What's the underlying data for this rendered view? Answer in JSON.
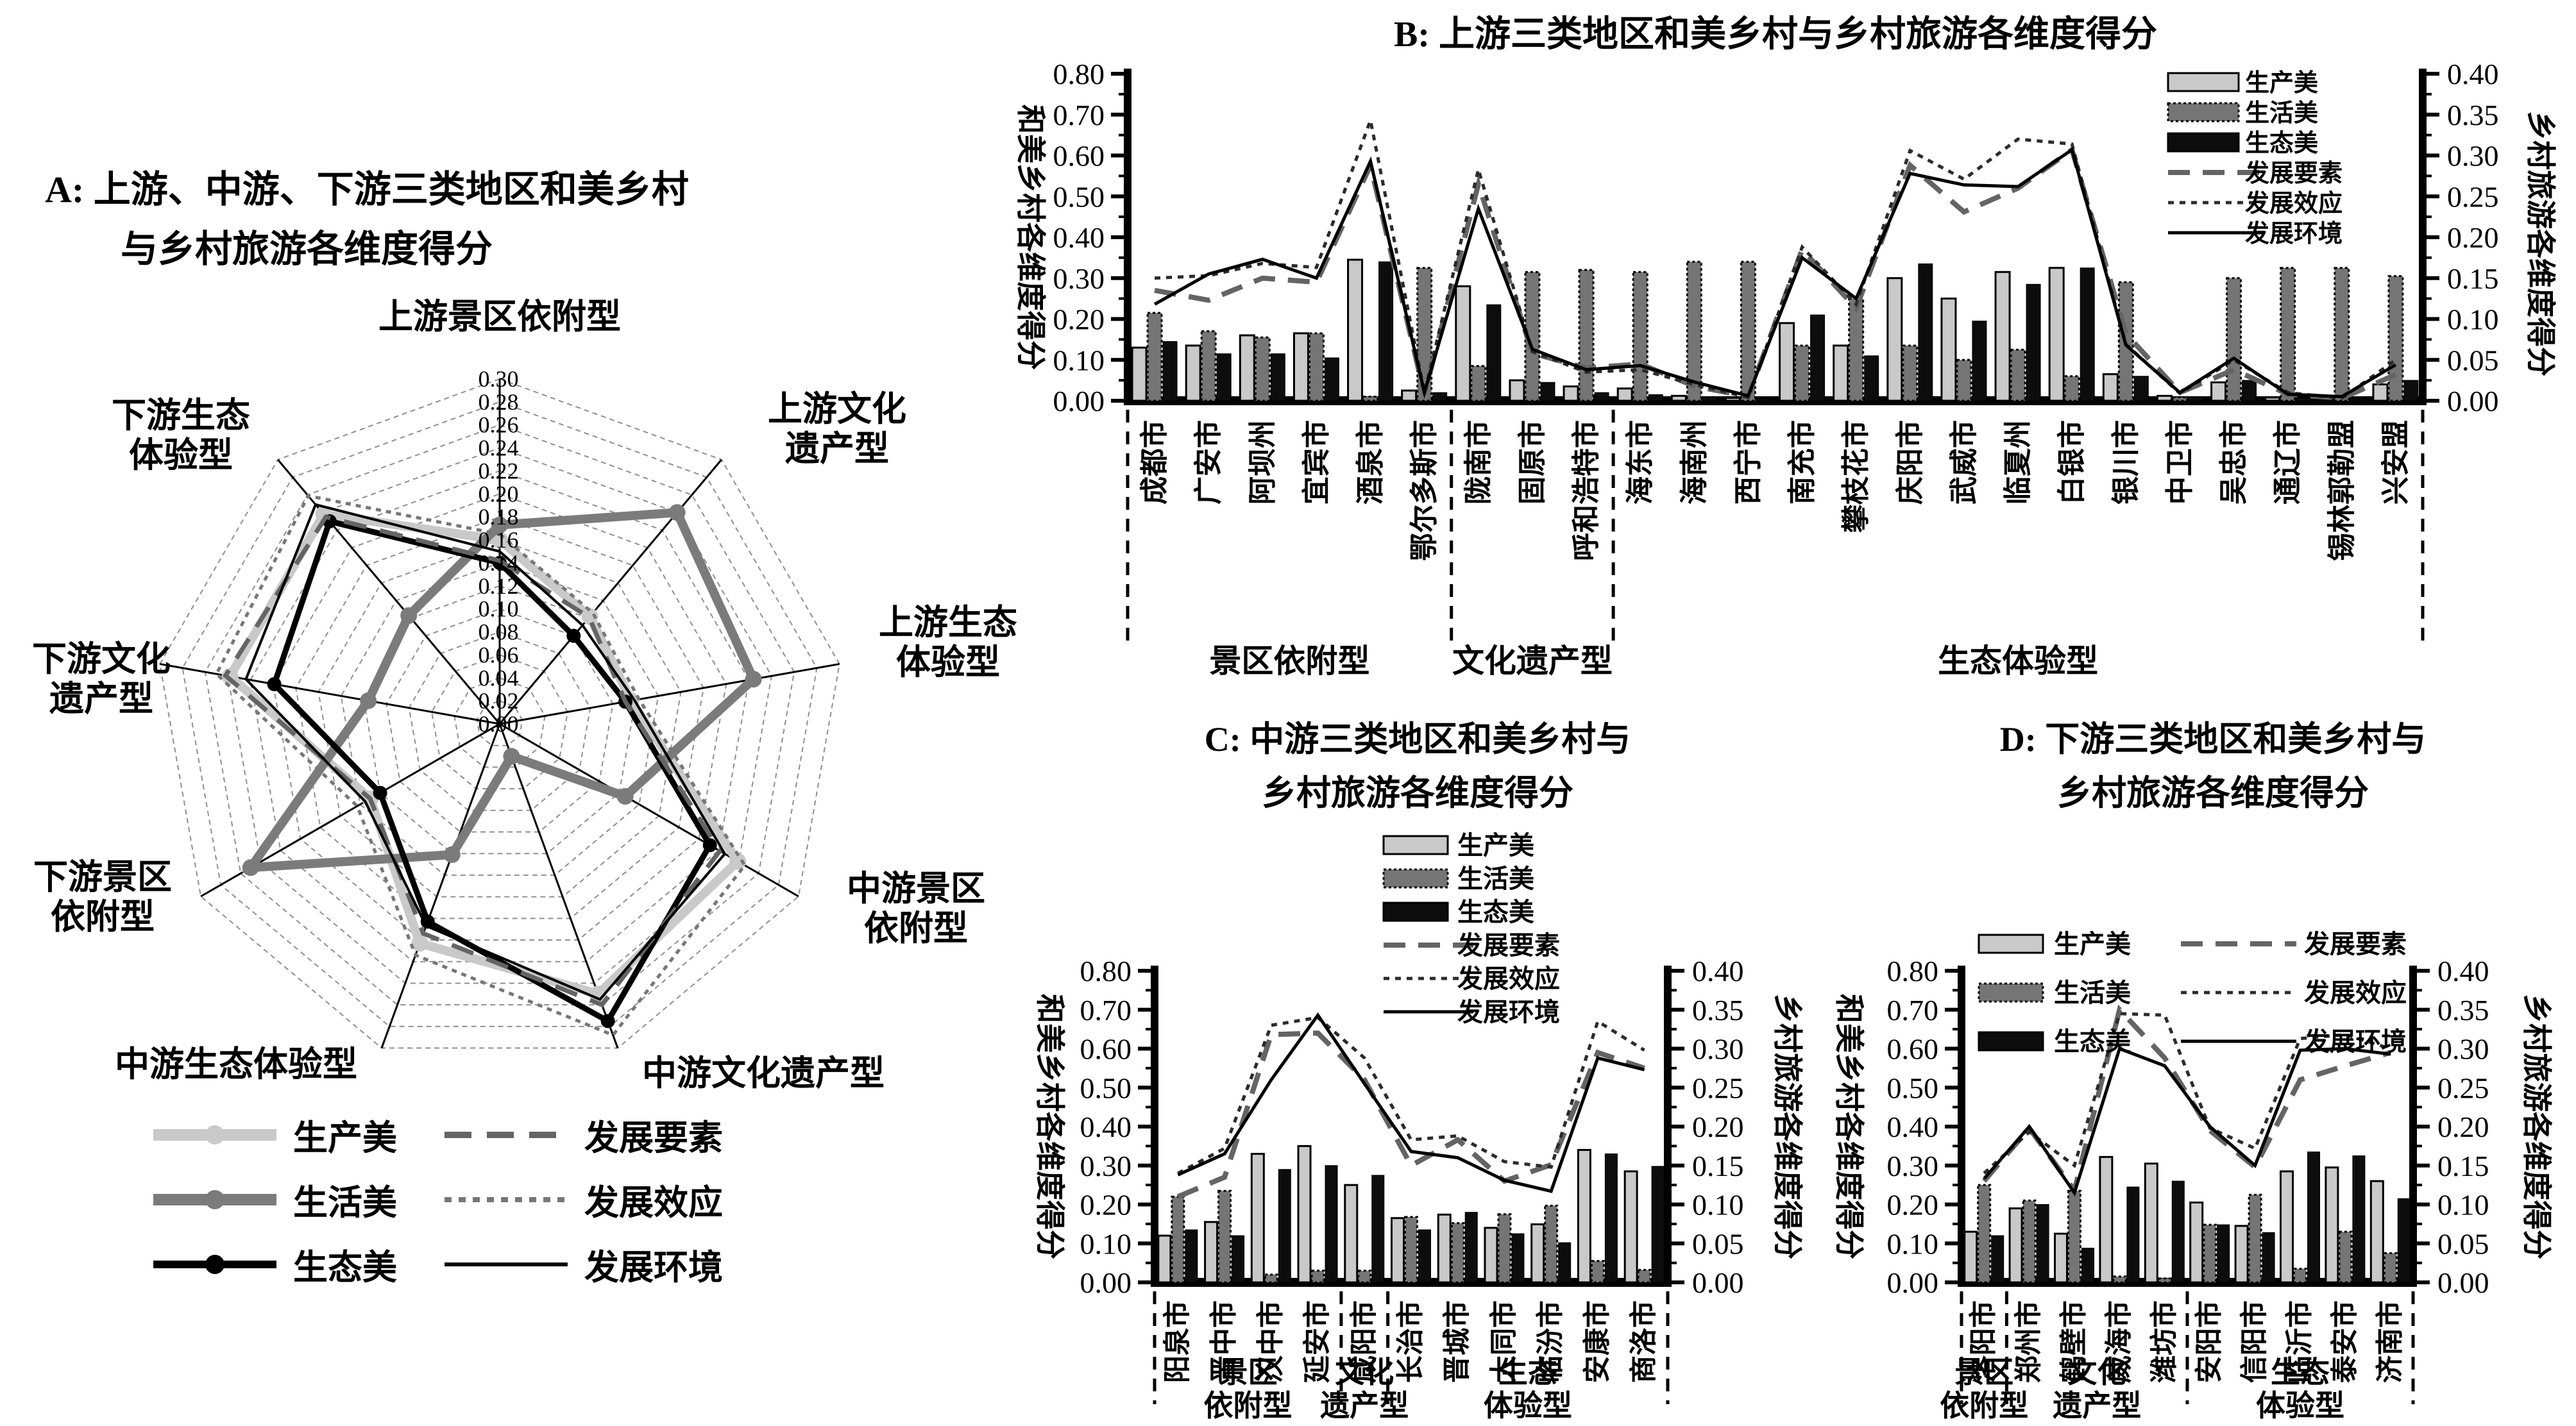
{
  "colors": {
    "light_gray": "#c9c9c9",
    "mid_gray": "#757575",
    "black": "#0d0d0d",
    "dash_gray": "#646464",
    "dot_dark": "#2b2b2b"
  },
  "legend_labels": [
    "生产美",
    "生活美",
    "生态美",
    "发展要素",
    "发展效应",
    "发展环境"
  ],
  "chart_data": [
    {
      "id": "A",
      "type": "radar",
      "title_lines": [
        "A: 上游、中游、下游三类地区和美乡村",
        "与乡村旅游各维度得分"
      ],
      "rmax": 0.3,
      "rticks": [
        "0.30",
        "0.28",
        "0.26",
        "0.24",
        "0.22",
        "0.20",
        "0.18",
        "0.16",
        "0.14",
        "0.12",
        "0.10",
        "0.08",
        "0.06",
        "0.04",
        "0.02",
        "0.00"
      ],
      "axes": [
        "上游景区依附型",
        "上游文化遗产型",
        "上游生态体验型",
        "中游景区依附型",
        "中游文化遗产型",
        "中游生态体验型",
        "下游景区依附型",
        "下游文化遗产型",
        "下游生态体验型"
      ],
      "axis_label_lines": [
        [
          "上游景区依附型"
        ],
        [
          "上游文化",
          "遗产型"
        ],
        [
          "上游生态",
          "体验型"
        ],
        [
          "中游景区",
          "依附型"
        ],
        [
          "中游文化遗产型"
        ],
        [
          "中游生态体验型"
        ],
        [
          "下游景区",
          "依附型"
        ],
        [
          "下游文化",
          "遗产型"
        ],
        [
          "下游生态",
          "体验型"
        ]
      ],
      "series": [
        {
          "name": "生产美",
          "values": [
            0.16,
            0.122,
            0.116,
            0.239,
            0.25,
            0.203,
            0.13,
            0.238,
            0.238
          ]
        },
        {
          "name": "生活美",
          "values": [
            0.173,
            0.24,
            0.224,
            0.126,
            0.03,
            0.121,
            0.25,
            0.116,
            0.123
          ]
        },
        {
          "name": "生态美",
          "values": [
            0.14,
            0.1,
            0.111,
            0.211,
            0.275,
            0.183,
            0.12,
            0.199,
            0.23
          ]
        },
        {
          "name": "发展要素",
          "values": [
            0.142,
            0.121,
            0.111,
            0.221,
            0.26,
            0.194,
            0.13,
            0.242,
            0.235
          ]
        },
        {
          "name": "发展效应",
          "values": [
            0.165,
            0.126,
            0.123,
            0.246,
            0.288,
            0.214,
            0.143,
            0.25,
            0.259
          ]
        },
        {
          "name": "发展环境",
          "values": [
            0.15,
            0.112,
            0.119,
            0.226,
            0.255,
            0.187,
            0.135,
            0.224,
            0.249
          ]
        }
      ]
    },
    {
      "id": "B",
      "type": "bar-line",
      "title": "B: 上游三类地区和美乡村与乡村旅游各维度得分",
      "ylabel_left": "和美乡村各维度得分",
      "ylabel_right": "乡村旅游各维度得分",
      "ylim_left": [
        0,
        0.8
      ],
      "ylim_right": [
        0,
        0.4
      ],
      "yticks_left": [
        "0.00",
        "0.10",
        "0.20",
        "0.30",
        "0.40",
        "0.50",
        "0.60",
        "0.70",
        "0.80"
      ],
      "yticks_right": [
        "0.00",
        "0.05",
        "0.10",
        "0.15",
        "0.20",
        "0.25",
        "0.30",
        "0.35",
        "0.40"
      ],
      "categories": [
        "成都市",
        "广安市",
        "阿坝州",
        "宜宾市",
        "酒泉市",
        "鄂尔多斯市",
        "陇南市",
        "固原市",
        "呼和浩特市",
        "海东市",
        "海南州",
        "西宁市",
        "南充市",
        "攀枝花市",
        "庆阳市",
        "武威市",
        "临夏州",
        "白银市",
        "银川市",
        "中卫市",
        "吴忠市",
        "通辽市",
        "锡林郭勒盟",
        "兴安盟"
      ],
      "groups": [
        {
          "label_lines": [
            "景区依附型"
          ],
          "count": 6
        },
        {
          "label_lines": [
            "文化遗产型"
          ],
          "count": 3
        },
        {
          "label_lines": [
            "生态体验型"
          ],
          "count": 15
        }
      ],
      "bar_series": [
        {
          "name": "生产美",
          "values": [
            0.13,
            0.135,
            0.16,
            0.165,
            0.345,
            0.025,
            0.28,
            0.05,
            0.035,
            0.03,
            0.012,
            0.007,
            0.19,
            0.135,
            0.3,
            0.25,
            0.315,
            0.325,
            0.065,
            0.012,
            0.045,
            0.008,
            0.004,
            0.04
          ]
        },
        {
          "name": "生活美",
          "values": [
            0.215,
            0.17,
            0.155,
            0.165,
            0.01,
            0.325,
            0.085,
            0.315,
            0.32,
            0.315,
            0.34,
            0.34,
            0.135,
            0.25,
            0.135,
            0.1,
            0.125,
            0.06,
            0.29,
            0.008,
            0.3,
            0.325,
            0.325,
            0.305
          ]
        },
        {
          "name": "生态美",
          "values": [
            0.145,
            0.115,
            0.115,
            0.105,
            0.34,
            0.02,
            0.235,
            0.045,
            0.02,
            0.015,
            0.008,
            0.004,
            0.21,
            0.11,
            0.335,
            0.195,
            0.285,
            0.325,
            0.06,
            0.008,
            0.05,
            0.006,
            0.004,
            0.05
          ]
        }
      ],
      "line_series": [
        {
          "name": "发展要素",
          "values": [
            0.135,
            0.123,
            0.15,
            0.145,
            0.288,
            0.008,
            0.265,
            0.058,
            0.04,
            0.045,
            0.018,
            0.005,
            0.185,
            0.113,
            0.288,
            0.231,
            0.26,
            0.307,
            0.082,
            0.01,
            0.038,
            0.008,
            0.003,
            0.032
          ]
        },
        {
          "name": "发展效应",
          "values": [
            0.15,
            0.153,
            0.168,
            0.163,
            0.343,
            0.01,
            0.283,
            0.06,
            0.035,
            0.038,
            0.02,
            0.004,
            0.188,
            0.118,
            0.306,
            0.271,
            0.32,
            0.314,
            0.069,
            0.009,
            0.05,
            0.01,
            0.003,
            0.05
          ]
        },
        {
          "name": "发展环境",
          "values": [
            0.118,
            0.155,
            0.173,
            0.15,
            0.293,
            0.01,
            0.235,
            0.063,
            0.038,
            0.043,
            0.023,
            0.006,
            0.175,
            0.125,
            0.278,
            0.264,
            0.262,
            0.307,
            0.068,
            0.01,
            0.052,
            0.008,
            0.005,
            0.044
          ]
        }
      ]
    },
    {
      "id": "C",
      "type": "bar-line",
      "title_lines": [
        "C: 中游三类地区和美乡村与",
        "乡村旅游各维度得分"
      ],
      "ylabel_left": "和美乡村各维度得分",
      "ylabel_right": "乡村旅游各维度得分",
      "ylim_left": [
        0,
        0.8
      ],
      "ylim_right": [
        0,
        0.4
      ],
      "yticks_left": [
        "0.00",
        "0.10",
        "0.20",
        "0.30",
        "0.40",
        "0.50",
        "0.60",
        "0.70",
        "0.80"
      ],
      "yticks_right": [
        "0.00",
        "0.05",
        "0.10",
        "0.15",
        "0.20",
        "0.25",
        "0.30",
        "0.35",
        "0.40"
      ],
      "categories": [
        "阳泉市",
        "晋中市",
        "汉中市",
        "延安市",
        "咸阳市",
        "长治市",
        "晋城市",
        "大同市",
        "临汾市",
        "安康市",
        "商洛市"
      ],
      "groups": [
        {
          "label_lines": [
            "景区",
            "依附型"
          ],
          "count": 4
        },
        {
          "label_lines": [
            "文化",
            "遗产型"
          ],
          "count": 1
        },
        {
          "label_lines": [
            "生态",
            "体验型"
          ],
          "count": 6
        }
      ],
      "bar_series": [
        {
          "name": "生产美",
          "values": [
            0.12,
            0.155,
            0.33,
            0.35,
            0.25,
            0.165,
            0.174,
            0.14,
            0.149,
            0.34,
            0.285
          ]
        },
        {
          "name": "生活美",
          "values": [
            0.22,
            0.235,
            0.02,
            0.03,
            0.03,
            0.168,
            0.152,
            0.175,
            0.197,
            0.055,
            0.032
          ]
        },
        {
          "name": "生态美",
          "values": [
            0.135,
            0.12,
            0.29,
            0.3,
            0.275,
            0.135,
            0.18,
            0.125,
            0.102,
            0.33,
            0.298
          ]
        }
      ],
      "line_series": [
        {
          "name": "发展要素",
          "values": [
            0.11,
            0.135,
            0.318,
            0.32,
            0.26,
            0.15,
            0.183,
            0.13,
            0.151,
            0.295,
            0.275
          ]
        },
        {
          "name": "发展效应",
          "values": [
            0.14,
            0.172,
            0.33,
            0.34,
            0.288,
            0.183,
            0.188,
            0.155,
            0.148,
            0.335,
            0.298
          ]
        },
        {
          "name": "发展环境",
          "values": [
            0.138,
            0.165,
            0.26,
            0.343,
            0.255,
            0.168,
            0.16,
            0.131,
            0.117,
            0.288,
            0.273
          ]
        }
      ]
    },
    {
      "id": "D",
      "type": "bar-line",
      "title_lines": [
        "D: 下游三类地区和美乡村与",
        "乡村旅游各维度得分"
      ],
      "ylabel_left": "和美乡村各维度得分",
      "ylabel_right": "乡村旅游各维度得分",
      "ylim_left": [
        0,
        0.8
      ],
      "ylim_right": [
        0,
        0.4
      ],
      "yticks_left": [
        "0.00",
        "0.10",
        "0.20",
        "0.30",
        "0.40",
        "0.50",
        "0.60",
        "0.70",
        "0.80"
      ],
      "yticks_right": [
        "0.00",
        "0.05",
        "0.10",
        "0.15",
        "0.20",
        "0.25",
        "0.30",
        "0.35",
        "0.40"
      ],
      "categories": [
        "洛阳市",
        "郑州市",
        "鹤壁市",
        "威海市",
        "潍坊市",
        "安阳市",
        "信阳市",
        "临沂市",
        "泰安市",
        "济南市"
      ],
      "groups": [
        {
          "label_lines": [
            "景区",
            "依附型"
          ],
          "count": 1
        },
        {
          "label_lines": [
            "文化",
            "遗产型"
          ],
          "count": 4
        },
        {
          "label_lines": [
            "生态",
            "体验型"
          ],
          "count": 5
        }
      ],
      "bar_series": [
        {
          "name": "生产美",
          "values": [
            0.13,
            0.19,
            0.125,
            0.322,
            0.305,
            0.205,
            0.145,
            0.285,
            0.295,
            0.26
          ]
        },
        {
          "name": "生活美",
          "values": [
            0.25,
            0.21,
            0.235,
            0.015,
            0.01,
            0.148,
            0.225,
            0.035,
            0.13,
            0.075
          ]
        },
        {
          "name": "生态美",
          "values": [
            0.12,
            0.2,
            0.088,
            0.245,
            0.26,
            0.148,
            0.128,
            0.335,
            0.325,
            0.215
          ]
        }
      ],
      "line_series": [
        {
          "name": "发展要素",
          "values": [
            0.13,
            0.198,
            0.118,
            0.35,
            0.288,
            0.195,
            0.148,
            0.26,
            0.278,
            0.295
          ]
        },
        {
          "name": "发展效应",
          "values": [
            0.14,
            0.193,
            0.15,
            0.345,
            0.343,
            0.198,
            0.172,
            0.313,
            0.318,
            0.3
          ]
        },
        {
          "name": "发展环境",
          "values": [
            0.133,
            0.2,
            0.115,
            0.3,
            0.278,
            0.2,
            0.15,
            0.298,
            0.3,
            0.293
          ]
        }
      ]
    }
  ]
}
